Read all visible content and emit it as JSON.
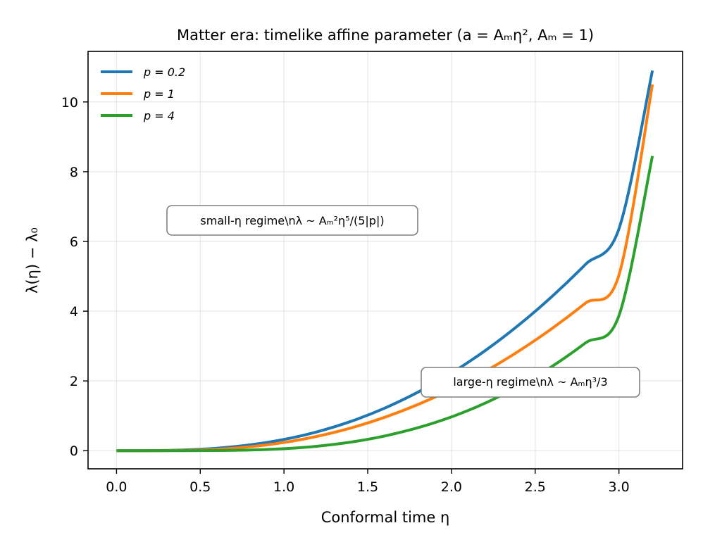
{
  "chart_data": {
    "type": "line",
    "title": "Matter era: timelike affine parameter (a = Aₘη², Aₘ = 1)",
    "xlabel": "Conformal time η",
    "ylabel": "λ(η) − λ₀",
    "xlim": [
      -0.17,
      3.38
    ],
    "ylim": [
      -0.52,
      11.45
    ],
    "xticks": [
      0.0,
      0.5,
      1.0,
      1.5,
      2.0,
      2.5,
      3.0
    ],
    "xtick_labels": [
      "0.0",
      "0.5",
      "1.0",
      "1.5",
      "2.0",
      "2.5",
      "3.0"
    ],
    "yticks": [
      0,
      2,
      4,
      6,
      8,
      10
    ],
    "ytick_labels": [
      "0",
      "2",
      "4",
      "6",
      "8",
      "10"
    ],
    "grid": true,
    "legend_position": "upper-left",
    "series": [
      {
        "name": "p = 0.2",
        "color": "#1f77b4",
        "x": [
          0.0,
          0.2,
          0.4,
          0.6,
          0.8,
          1.0,
          1.2,
          1.4,
          1.6,
          1.8,
          2.0,
          2.2,
          2.4,
          2.6,
          2.8,
          3.0,
          3.2
        ],
        "y": [
          0.0,
          0.0026,
          0.0211,
          0.0713,
          0.168,
          0.3225,
          0.5445,
          0.8413,
          1.218,
          1.679,
          2.227,
          2.865,
          3.596,
          4.42,
          5.341,
          6.361,
          10.9
        ]
      },
      {
        "name": "p = 1",
        "color": "#ff7f0e",
        "x": [
          0.0,
          0.2,
          0.4,
          0.6,
          0.8,
          1.0,
          1.2,
          1.4,
          1.6,
          1.8,
          2.0,
          2.2,
          2.4,
          2.6,
          2.8,
          3.0,
          3.2
        ],
        "y": [
          0.0,
          0.0003,
          0.0085,
          0.0411,
          0.1146,
          0.2357,
          0.4138,
          0.6523,
          0.9545,
          1.324,
          1.762,
          2.27,
          2.85,
          3.503,
          4.231,
          5.035,
          10.5
        ]
      },
      {
        "name": "p = 4",
        "color": "#2ca02c",
        "x": [
          0.0,
          0.2,
          0.4,
          0.6,
          0.8,
          1.0,
          1.2,
          1.4,
          1.6,
          1.8,
          2.0,
          2.2,
          2.4,
          2.6,
          2.8,
          3.0,
          3.2
        ],
        "y": [
          0.0,
          0.0,
          0.0006,
          0.0048,
          0.0199,
          0.0574,
          0.1293,
          0.2471,
          0.4206,
          0.6588,
          0.9696,
          1.362,
          1.842,
          2.416,
          3.09,
          3.871,
          8.45
        ]
      }
    ],
    "annotations": [
      {
        "text": "small-η regime\\nλ ~ Aₘ²η⁵/(5|p|)"
      },
      {
        "text": "large-η regime\\nλ ~ Aₘη³/3"
      }
    ]
  }
}
